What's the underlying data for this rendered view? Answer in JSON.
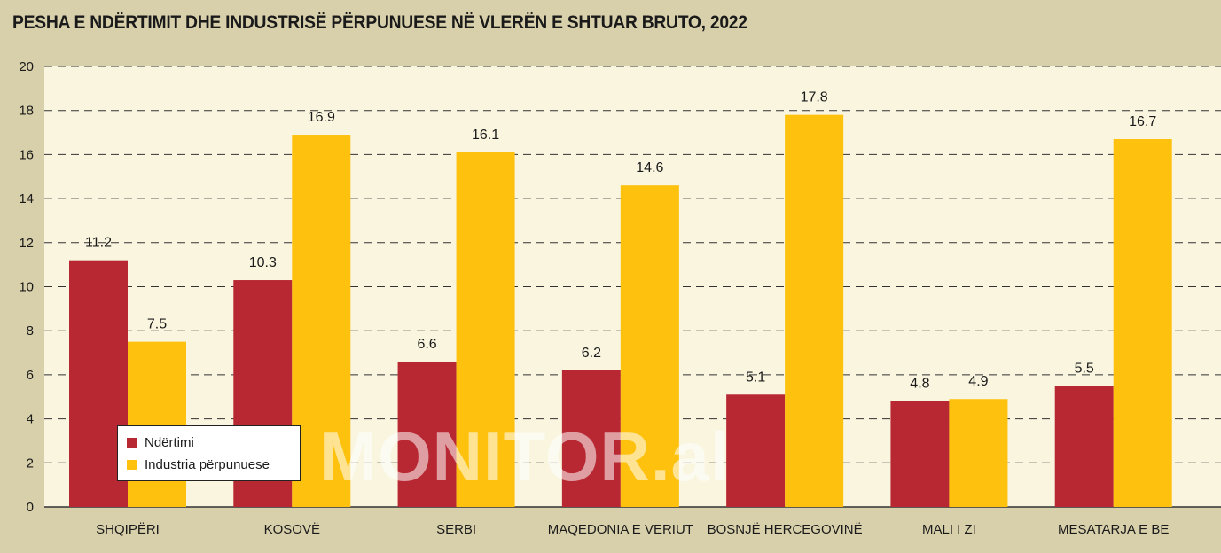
{
  "title": "PESHA E NDËRTIMIT DHE INDUSTRISË PËRPUNUESE NË VLERËN E SHTUAR BRUTO, 2022",
  "watermark": "MONITOR.al",
  "legend": {
    "items": [
      {
        "label": "Ndërtimi",
        "color": "#b82832"
      },
      {
        "label": "Industria përpunuese",
        "color": "#fdc10e"
      }
    ]
  },
  "chart_data": {
    "type": "bar",
    "categories": [
      "SHQIPËRI",
      "KOSOVË",
      "SERBI",
      "MAQEDONIA E VERIUT",
      "BOSNJË HERCEGOVINË",
      "MALI I ZI",
      "MESATARJA E BE"
    ],
    "series": [
      {
        "name": "Ndërtimi",
        "values": [
          11.2,
          10.3,
          6.6,
          6.2,
          5.1,
          4.8,
          5.5
        ],
        "color": "#b82832"
      },
      {
        "name": "Industria përpunuese",
        "values": [
          7.5,
          16.9,
          16.1,
          14.6,
          17.8,
          4.9,
          16.7
        ],
        "color": "#fdc10e"
      }
    ],
    "ylim": [
      0,
      20
    ],
    "yticks": [
      0,
      2,
      4,
      6,
      8,
      10,
      12,
      14,
      16,
      18,
      20
    ],
    "grid": true,
    "plot_background": "#f9f5df",
    "legend_position": "bottom-left",
    "data_labels": true
  }
}
